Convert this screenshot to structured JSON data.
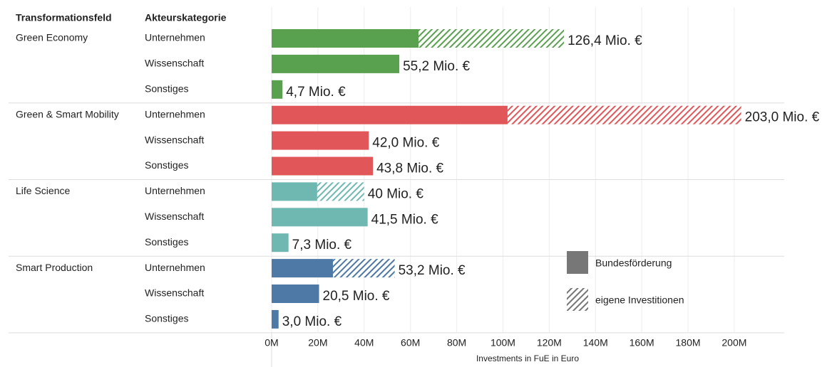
{
  "chart_data": {
    "type": "bar",
    "headers": [
      "Transformationsfeld",
      "Akteurskategorie"
    ],
    "groups": [
      "Green Economy",
      "Green & Smart Mobility",
      "Life Science",
      "Smart Production"
    ],
    "group_colors": [
      "#59a14f",
      "#e15759",
      "#6fb7b1",
      "#4e79a7"
    ],
    "categories": [
      "Unternehmen",
      "Wissenschaft",
      "Sonstiges",
      "Unternehmen",
      "Wissenschaft",
      "Sonstiges",
      "Unternehmen",
      "Wissenschaft",
      "Sonstiges",
      "Unternehmen",
      "Wissenschaft",
      "Sonstiges"
    ],
    "series": [
      {
        "name": "Bundesförderung",
        "color": "#777777",
        "values": [
          63.5,
          55.2,
          4.7,
          102.0,
          42.0,
          43.8,
          19.7,
          41.5,
          7.3,
          26.5,
          20.5,
          3.0
        ]
      },
      {
        "name": "eigene Investitionen",
        "color": "#777777",
        "hatched": true,
        "values": [
          62.9,
          null,
          null,
          101.0,
          null,
          null,
          20.3,
          null,
          null,
          26.7,
          null,
          null
        ]
      }
    ],
    "totals": [
      126.4,
      55.2,
      4.7,
      203.0,
      42.0,
      43.8,
      40,
      41.5,
      7.3,
      53.2,
      20.5,
      3.0
    ],
    "value_labels": [
      "126,4 Mio. €",
      "55,2 Mio. €",
      "4,7 Mio. €",
      "203,0 Mio. €",
      "42,0 Mio. €",
      "43,8 Mio. €",
      "40 Mio. €",
      "41,5 Mio. €",
      "7,3 Mio. €",
      "53,2 Mio. €",
      "20,5 Mio. €",
      "3,0 Mio. €"
    ],
    "xlabel": "Investments in FuE in Euro",
    "xlim": [
      0,
      221.6
    ],
    "xticks": [
      {
        "value": 0,
        "label": "0M"
      },
      {
        "value": 20,
        "label": "20M"
      },
      {
        "value": 40,
        "label": "40M"
      },
      {
        "value": 60,
        "label": "60M"
      },
      {
        "value": 80,
        "label": "80M"
      },
      {
        "value": 100,
        "label": "100M"
      },
      {
        "value": 120,
        "label": "120M"
      },
      {
        "value": 140,
        "label": "140M"
      },
      {
        "value": 160,
        "label": "160M"
      },
      {
        "value": 180,
        "label": "180M"
      },
      {
        "value": 200,
        "label": "200M"
      }
    ],
    "grid": true
  }
}
